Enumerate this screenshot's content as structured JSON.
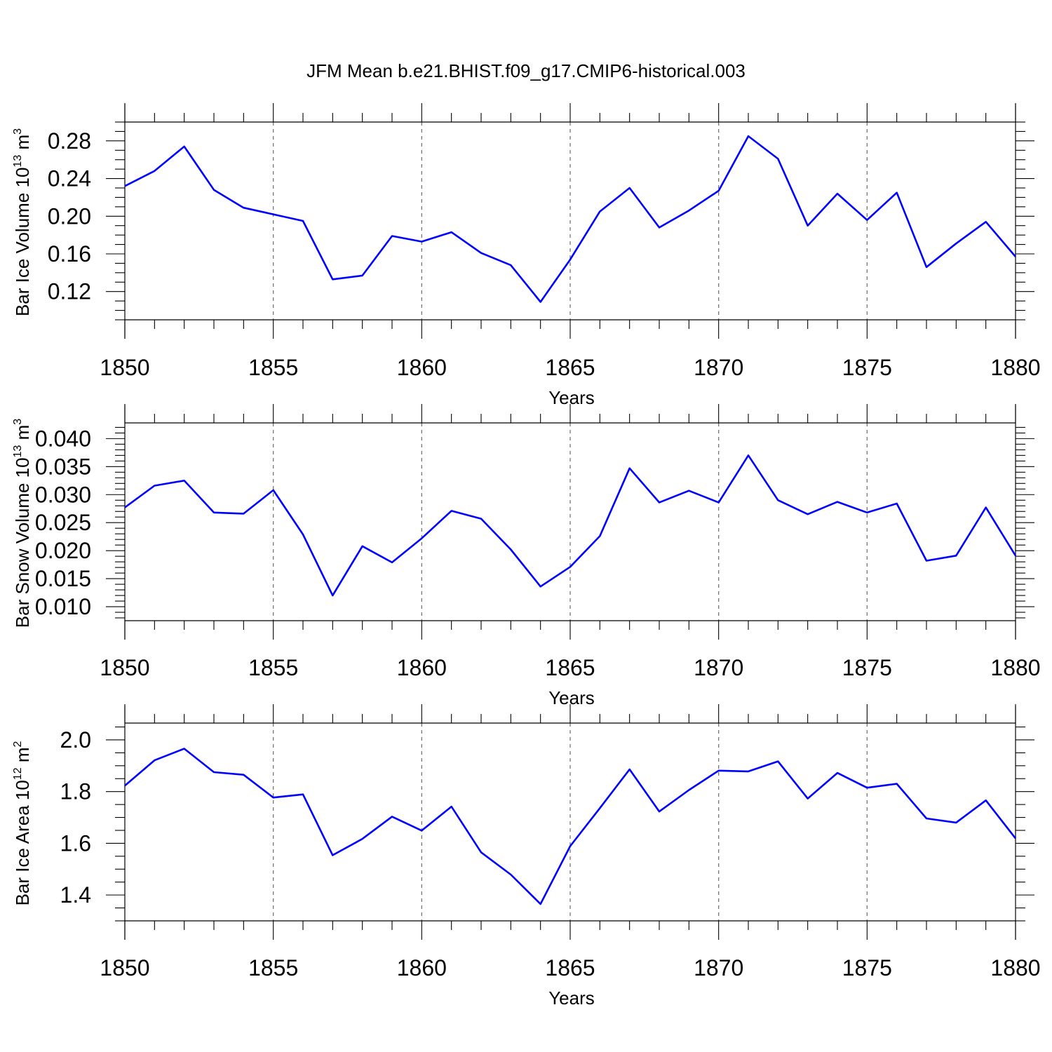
{
  "title": "JFM Mean b.e21.BHIST.f09_g17.CMIP6-historical.003",
  "colors": {
    "series": "#0000ff",
    "grid": "#777777",
    "axes": "#000000"
  },
  "chart_data": [
    {
      "type": "line",
      "xlabel": "Years",
      "ylabel": {
        "main": "Bar Ice Volume 10",
        "sup": "13",
        "unit": " m",
        "unit_sup": "3"
      },
      "xlim": [
        1850,
        1880
      ],
      "ylim": [
        0.09,
        0.3
      ],
      "xticks": [
        "1850",
        "1855",
        "1860",
        "1865",
        "1870",
        "1875",
        "1880"
      ],
      "yticks": [
        "0.12",
        "0.16",
        "0.20",
        "0.24",
        "0.28"
      ],
      "grid": "vertical dashed at major x ticks",
      "x": [
        1850,
        1851,
        1852,
        1853,
        1854,
        1855,
        1856,
        1857,
        1858,
        1859,
        1860,
        1861,
        1862,
        1863,
        1864,
        1865,
        1866,
        1867,
        1868,
        1869,
        1870,
        1871,
        1872,
        1873,
        1874,
        1875,
        1876,
        1877,
        1878,
        1879,
        1880
      ],
      "values": [
        0.232,
        0.248,
        0.274,
        0.228,
        0.209,
        0.202,
        0.195,
        0.133,
        0.137,
        0.179,
        0.173,
        0.183,
        0.161,
        0.148,
        0.109,
        0.154,
        0.205,
        0.23,
        0.188,
        0.206,
        0.227,
        0.285,
        0.261,
        0.19,
        0.224,
        0.196,
        0.225,
        0.146,
        0.171,
        0.194,
        0.157
      ]
    },
    {
      "type": "line",
      "xlabel": "Years",
      "ylabel": {
        "main": "Bar Snow Volume 10",
        "sup": "13",
        "unit": " m",
        "unit_sup": "3"
      },
      "xlim": [
        1850,
        1880
      ],
      "ylim": [
        0.0075,
        0.0428
      ],
      "xticks": [
        "1850",
        "1855",
        "1860",
        "1865",
        "1870",
        "1875",
        "1880"
      ],
      "yticks": [
        "0.010",
        "0.015",
        "0.020",
        "0.025",
        "0.030",
        "0.035",
        "0.040"
      ],
      "grid": "vertical dashed at major x ticks",
      "x": [
        1850,
        1851,
        1852,
        1853,
        1854,
        1855,
        1856,
        1857,
        1858,
        1859,
        1860,
        1861,
        1862,
        1863,
        1864,
        1865,
        1866,
        1867,
        1868,
        1869,
        1870,
        1871,
        1872,
        1873,
        1874,
        1875,
        1876,
        1877,
        1878,
        1879,
        1880
      ],
      "values": [
        0.0277,
        0.0316,
        0.0325,
        0.0268,
        0.0266,
        0.0308,
        0.0229,
        0.012,
        0.0208,
        0.0179,
        0.0222,
        0.0271,
        0.0257,
        0.0202,
        0.0136,
        0.0171,
        0.0226,
        0.0347,
        0.0286,
        0.0307,
        0.0286,
        0.037,
        0.029,
        0.0265,
        0.0287,
        0.0268,
        0.0284,
        0.0182,
        0.0191,
        0.0277,
        0.0191
      ]
    },
    {
      "type": "line",
      "xlabel": "Years",
      "ylabel": {
        "main": "Bar Ice Area 10",
        "sup": "12",
        "unit": " m",
        "unit_sup": "2"
      },
      "xlim": [
        1850,
        1880
      ],
      "ylim": [
        1.3,
        2.065
      ],
      "xticks": [
        "1850",
        "1855",
        "1860",
        "1865",
        "1870",
        "1875",
        "1880"
      ],
      "yticks": [
        "1.4",
        "1.6",
        "1.8",
        "2.0"
      ],
      "grid": "vertical dashed at major x ticks",
      "x": [
        1850,
        1851,
        1852,
        1853,
        1854,
        1855,
        1856,
        1857,
        1858,
        1859,
        1860,
        1861,
        1862,
        1863,
        1864,
        1865,
        1866,
        1867,
        1868,
        1869,
        1870,
        1871,
        1872,
        1873,
        1874,
        1875,
        1876,
        1877,
        1878,
        1879,
        1880
      ],
      "values": [
        1.823,
        1.921,
        1.966,
        1.875,
        1.865,
        1.777,
        1.789,
        1.554,
        1.617,
        1.703,
        1.649,
        1.742,
        1.565,
        1.479,
        1.365,
        1.589,
        1.736,
        1.886,
        1.723,
        1.806,
        1.881,
        1.878,
        1.917,
        1.773,
        1.872,
        1.815,
        1.83,
        1.696,
        1.68,
        1.766,
        1.619
      ]
    }
  ]
}
